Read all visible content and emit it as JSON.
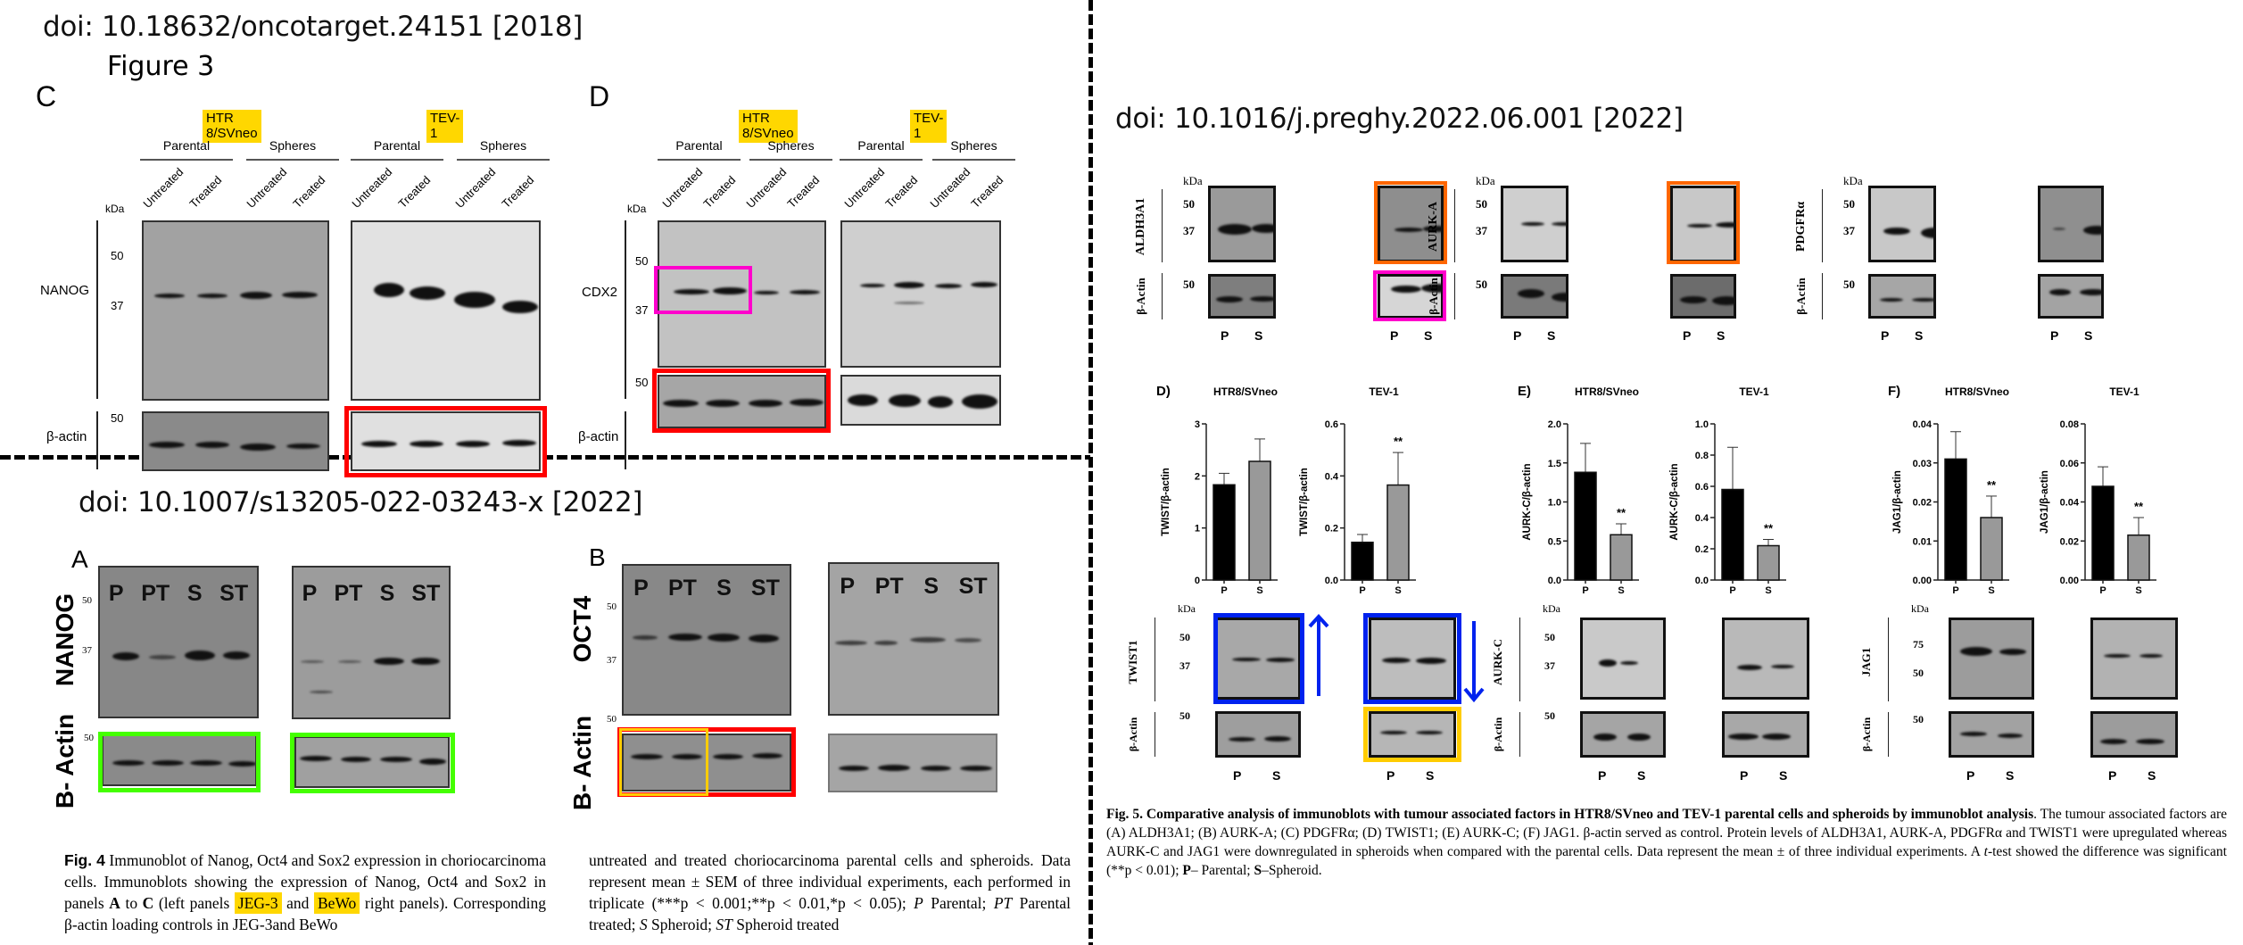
{
  "dividers": {
    "vertical": "dashed",
    "horizontal": "dashed"
  },
  "fig1": {
    "doi": "doi: 10.18632/oncotarget.24151 [2018]",
    "figure_title": "Figure 3",
    "panel_c": {
      "letter": "C",
      "cell_lines": [
        "HTR 8/SVneo",
        "TEV-1"
      ],
      "groups": [
        "Parental",
        "Spheres",
        "Parental",
        "Spheres"
      ],
      "lanes": [
        "Untreated",
        "Treated",
        "Untreated",
        "Treated",
        "Untreated",
        "Treated",
        "Untreated",
        "Treated"
      ],
      "kda": "kDa",
      "protein": "NANOG",
      "control": "β-actin",
      "markers": [
        "50",
        "37"
      ],
      "control_marker": "50",
      "highlight_color": "#ff0000"
    },
    "panel_d": {
      "letter": "D",
      "cell_lines": [
        "HTR 8/SVneo",
        "TEV-1"
      ],
      "groups": [
        "Parental",
        "Spheres",
        "Parental",
        "Spheres"
      ],
      "lanes": [
        "Untreated",
        "Treated",
        "Untreated",
        "Treated",
        "Untreated",
        "Treated",
        "Untreated",
        "Treated"
      ],
      "kda": "kDa",
      "protein": "CDX2",
      "control": "β-actin",
      "markers": [
        "50",
        "37"
      ],
      "control_marker": "50",
      "highlight_colors": [
        "#ff00cc",
        "#ff0000"
      ]
    }
  },
  "fig2": {
    "doi": "doi: 10.1007/s13205-022-03243-x [2022]",
    "panel_a": {
      "letter": "A",
      "protein": "NANOG",
      "control": "B- Actin",
      "lanes": [
        "P",
        "PT",
        "S",
        "ST"
      ],
      "markers": [
        "50",
        "37"
      ],
      "control_marker": "50",
      "highlight_color": "#44ff00"
    },
    "panel_b": {
      "letter": "B",
      "protein": "OCT4",
      "control": "B- Actin",
      "lanes": [
        "P",
        "PT",
        "S",
        "ST"
      ],
      "markers": [
        "50",
        "37"
      ],
      "control_marker": "50",
      "highlight_colors": [
        "#ffcc00",
        "#ff0000"
      ]
    },
    "caption": {
      "fig_label": "Fig. 4",
      "part1": " Immunoblot of Nanog, Oct4 and Sox2 expression in choriocarcinoma cells. Immunoblots showing the expression of Nanog, Oct4 and Sox2 in panels ",
      "bold_a": "A",
      "to": " to ",
      "bold_c": "C",
      "part2": " (left panels ",
      "hl1": "JEG-3",
      "and": " and ",
      "hl2": "BeWo",
      "part3": " right panels). Corresponding β-actin loading controls in JEG-3and BeWo",
      "col2": "untreated and treated choriocarcinoma parental cells and spheroids. Data represent mean ± SEM of three individual experiments, each performed in triplicate (***p < 0.001;**p < 0.01,*p < 0.05); ",
      "p_abbr": "P",
      "p_def": " Parental; ",
      "pt_abbr": "PT",
      "pt_def": " Parental treated; ",
      "s_abbr": "S",
      "s_def": " Spheroid; ",
      "st_abbr": "ST",
      "st_def": " Spheroid treated"
    }
  },
  "fig3": {
    "doi": "doi: 10.1016/j.preghy.2022.06.001 [2022]",
    "top_blots": [
      {
        "protein": "ALDH3A1",
        "kda": "kDa",
        "markers": [
          "50",
          "37"
        ],
        "control": "β-Actin",
        "control_marker": "50",
        "lanes": [
          "P",
          "S"
        ],
        "frame2_colors": [
          "#ff6600",
          "#ff00cc"
        ]
      },
      {
        "protein": "AURK-A",
        "kda": "kDa",
        "markers": [
          "50",
          "37"
        ],
        "control": "β-Actin",
        "control_marker": "50",
        "lanes": [
          "P",
          "S"
        ],
        "frame2_colors": [
          "#ff6600"
        ]
      },
      {
        "protein": "PDGFRα",
        "kda": "kDa",
        "markers": [
          "50",
          "37"
        ],
        "control": "β-Actin",
        "control_marker": "50",
        "lanes": [
          "P",
          "S"
        ]
      }
    ],
    "bottom_blots": [
      {
        "protein": "TWIST1",
        "kda": "kDa",
        "markers": [
          "50",
          "37"
        ],
        "control": "β-Actin",
        "control_marker": "50",
        "lanes": [
          "P",
          "S"
        ],
        "frame_colors": [
          "#0022ee",
          "#ffcc00"
        ],
        "arrows": [
          "up",
          "down"
        ]
      },
      {
        "protein": "AURK-C",
        "kda": "kDa",
        "markers": [
          "50",
          "37"
        ],
        "control": "β-Actin",
        "control_marker": "50",
        "lanes": [
          "P",
          "S"
        ]
      },
      {
        "protein": "JAG1",
        "kda": "kDa",
        "markers": [
          "75",
          "50"
        ],
        "control": "β-Actin",
        "control_marker": "50",
        "lanes": [
          "P",
          "S"
        ]
      }
    ],
    "caption": {
      "bold_title": "Fig. 5. Comparative analysis of immunoblots with tumour associated factors in HTR8/SVneo and TEV-1 parental cells and spheroids by immunoblot analysis",
      "text1": ". The tumour associated factors are (A) ALDH3A1; (B) AURK-A; (C) PDGFRα; (D) TWIST1; (E) AURK-C; (F) JAG1. β-actin served as control. Protein levels of ALDH3A1, AURK-A, PDGFRα and TWIST1 were upregulated whereas AURK-C and JAG1 were downregulated in spheroids when compared with the parental cells. Data represent the mean ± of three individual experiments. A ",
      "t_test": "t",
      "text2": "-test showed the difference was significant (**p < 0.01); ",
      "p_bold": "P",
      "p_def": "– Parental; ",
      "s_bold": "S",
      "s_def": "–Spheroid."
    }
  },
  "chart_data": [
    {
      "type": "bar",
      "panel": "D)",
      "title": "HTR8/SVneo",
      "ylabel": "TWIST/β-actin",
      "categories": [
        "P",
        "S"
      ],
      "values": [
        1.83,
        2.28
      ],
      "errors": [
        0.22,
        0.43
      ],
      "ylim": [
        0,
        3
      ],
      "yticks": [
        "0",
        "1",
        "2",
        "3"
      ],
      "significance": [
        "",
        ""
      ],
      "colors": [
        "#000000",
        "#999999"
      ]
    },
    {
      "type": "bar",
      "panel": "",
      "title": "TEV-1",
      "ylabel": "TWIST/β-actin",
      "categories": [
        "P",
        "S"
      ],
      "values": [
        0.145,
        0.365
      ],
      "errors": [
        0.03,
        0.125
      ],
      "ylim": [
        0,
        0.6
      ],
      "yticks": [
        "0.0",
        "0.2",
        "0.4",
        "0.6"
      ],
      "significance": [
        "",
        "**"
      ],
      "colors": [
        "#000000",
        "#999999"
      ]
    },
    {
      "type": "bar",
      "panel": "E)",
      "title": "HTR8/SVneo",
      "ylabel": "AURK-C/β-actin",
      "categories": [
        "P",
        "S"
      ],
      "values": [
        1.38,
        0.58
      ],
      "errors": [
        0.37,
        0.14
      ],
      "ylim": [
        0,
        2.0
      ],
      "yticks": [
        "0.0",
        "0.5",
        "1.0",
        "1.5",
        "2.0"
      ],
      "significance": [
        "",
        "**"
      ],
      "colors": [
        "#000000",
        "#999999"
      ]
    },
    {
      "type": "bar",
      "panel": "",
      "title": "TEV-1",
      "ylabel": "AURK-C/β-actin",
      "categories": [
        "P",
        "S"
      ],
      "values": [
        0.58,
        0.22
      ],
      "errors": [
        0.27,
        0.04
      ],
      "ylim": [
        0,
        1.0
      ],
      "yticks": [
        "0.0",
        "0.2",
        "0.4",
        "0.6",
        "0.8",
        "1.0"
      ],
      "significance": [
        "",
        "**"
      ],
      "colors": [
        "#000000",
        "#999999"
      ]
    },
    {
      "type": "bar",
      "panel": "F)",
      "title": "HTR8/SVneo",
      "ylabel": "JAG1/β-actin",
      "categories": [
        "P",
        "S"
      ],
      "values": [
        0.031,
        0.016
      ],
      "errors": [
        0.007,
        0.0055
      ],
      "ylim": [
        0,
        0.04
      ],
      "yticks": [
        "0.00",
        "0.01",
        "0.02",
        "0.03",
        "0.04"
      ],
      "significance": [
        "",
        "**"
      ],
      "colors": [
        "#000000",
        "#999999"
      ]
    },
    {
      "type": "bar",
      "panel": "",
      "title": "TEV-1",
      "ylabel": "JAG1/β-actin",
      "categories": [
        "P",
        "S"
      ],
      "values": [
        0.048,
        0.023
      ],
      "errors": [
        0.01,
        0.009
      ],
      "ylim": [
        0,
        0.08
      ],
      "yticks": [
        "0.00",
        "0.02",
        "0.04",
        "0.06",
        "0.08"
      ],
      "significance": [
        "",
        "**"
      ],
      "colors": [
        "#000000",
        "#999999"
      ]
    }
  ]
}
